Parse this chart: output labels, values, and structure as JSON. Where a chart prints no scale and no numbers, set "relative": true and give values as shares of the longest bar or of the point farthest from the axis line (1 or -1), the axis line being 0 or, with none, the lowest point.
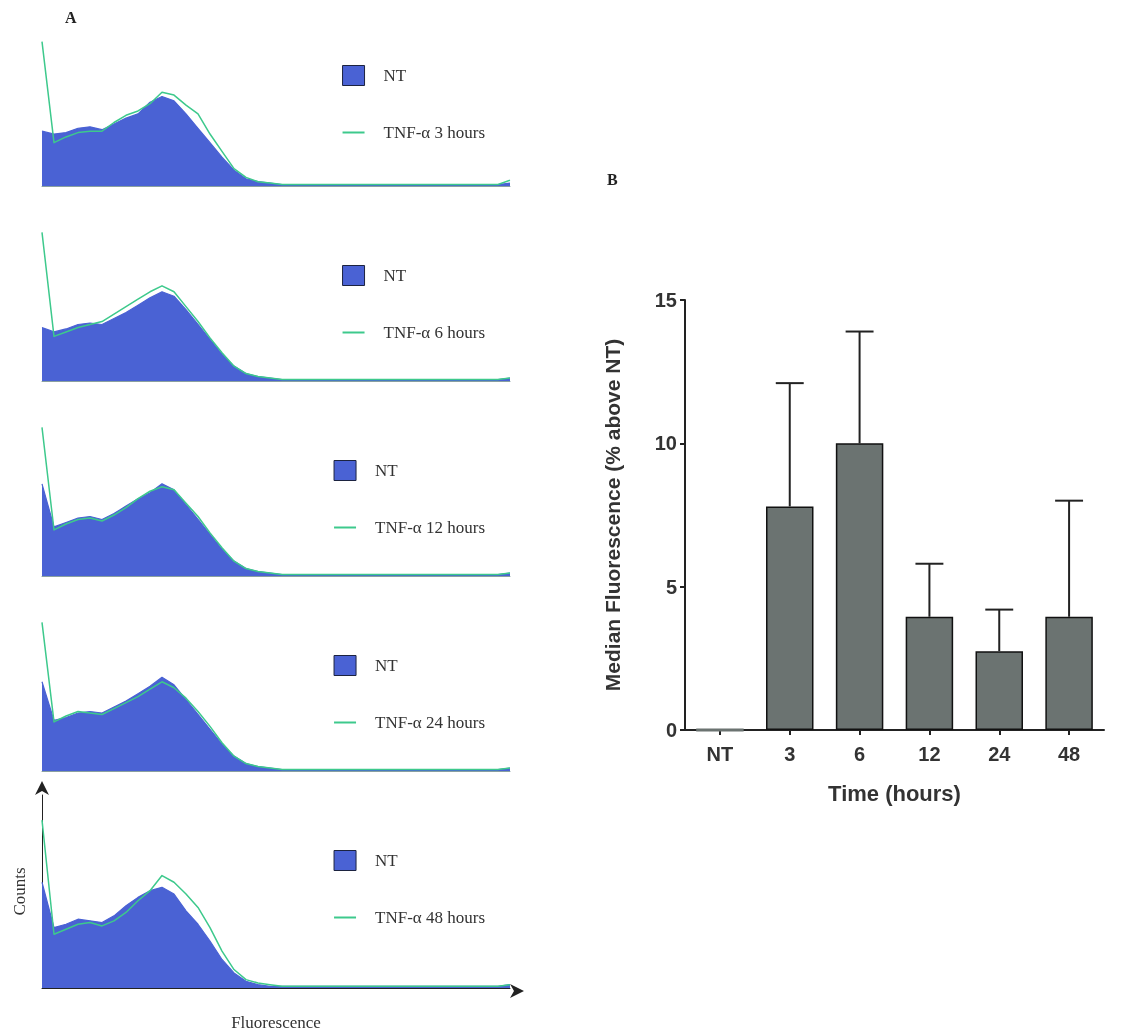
{
  "chart_data": [
    {
      "type": "area",
      "title": "A",
      "relative": true,
      "legend": "top right",
      "marker": "none",
      "categories": [
        null,
        null,
        null,
        null,
        null,
        null,
        null,
        null,
        null,
        null,
        null,
        null,
        null,
        null,
        null,
        null,
        null,
        null,
        null,
        null,
        null,
        null,
        null,
        null,
        null,
        null,
        null,
        null,
        null,
        null,
        null,
        null,
        null,
        null,
        null,
        null,
        null,
        null,
        null,
        null
      ],
      "series": [
        {
          "name": "NT",
          "color": "#4a62d4",
          "values": [
            0.38,
            0.36,
            0.37,
            0.4,
            0.41,
            0.39,
            0.43,
            0.47,
            0.5,
            0.58,
            0.62,
            0.59,
            0.5,
            0.4,
            0.3,
            0.2,
            0.11,
            0.05,
            0.03,
            0.02,
            0.01,
            0.01,
            0.01,
            0.01,
            0.01,
            0.01,
            0.01,
            0.01,
            0.01,
            0.01,
            0.01,
            0.01,
            0.01,
            0.01,
            0.01,
            0.01,
            0.01,
            0.01,
            0.01,
            0.02
          ]
        },
        {
          "name": "TNF-α 3 hours",
          "type": "line",
          "color": "#3dc98c",
          "values": [
            1,
            0.3,
            0.34,
            0.37,
            0.38,
            0.38,
            0.44,
            0.49,
            0.52,
            0.57,
            0.65,
            0.63,
            0.56,
            0.5,
            0.36,
            0.24,
            0.12,
            0.06,
            0.03,
            0.02,
            0.01,
            0.01,
            0.01,
            0.01,
            0.01,
            0.01,
            0.01,
            0.01,
            0.01,
            0.01,
            0.01,
            0.01,
            0.01,
            0.01,
            0.01,
            0.01,
            0.01,
            0.01,
            0.01,
            0.04
          ]
        }
      ]
    },
    {
      "type": "area",
      "relative": true,
      "legend": "top right",
      "marker": "none",
      "categories": [
        null,
        null,
        null,
        null,
        null,
        null,
        null,
        null,
        null,
        null,
        null,
        null,
        null,
        null,
        null,
        null,
        null,
        null,
        null,
        null,
        null,
        null,
        null,
        null,
        null,
        null,
        null,
        null,
        null,
        null,
        null,
        null,
        null,
        null,
        null,
        null,
        null,
        null,
        null,
        null
      ],
      "series": [
        {
          "name": "NT",
          "color": "#4a62d4",
          "values": [
            0.36,
            0.33,
            0.35,
            0.38,
            0.39,
            0.38,
            0.42,
            0.46,
            0.51,
            0.56,
            0.6,
            0.57,
            0.48,
            0.38,
            0.28,
            0.18,
            0.1,
            0.05,
            0.03,
            0.02,
            0.01,
            0.01,
            0.01,
            0.01,
            0.01,
            0.01,
            0.01,
            0.01,
            0.01,
            0.01,
            0.01,
            0.01,
            0.01,
            0.01,
            0.01,
            0.01,
            0.01,
            0.01,
            0.01,
            0.02
          ]
        },
        {
          "name": "TNF-α 6 hours",
          "type": "line",
          "color": "#3dc98c",
          "values": [
            1,
            0.3,
            0.33,
            0.36,
            0.38,
            0.4,
            0.45,
            0.5,
            0.55,
            0.6,
            0.64,
            0.6,
            0.5,
            0.4,
            0.29,
            0.19,
            0.1,
            0.05,
            0.03,
            0.02,
            0.01,
            0.01,
            0.01,
            0.01,
            0.01,
            0.01,
            0.01,
            0.01,
            0.01,
            0.01,
            0.01,
            0.01,
            0.01,
            0.01,
            0.01,
            0.01,
            0.01,
            0.01,
            0.01,
            0.02
          ]
        }
      ]
    },
    {
      "type": "area",
      "relative": true,
      "legend": "top right",
      "marker": "none",
      "categories": [
        null,
        null,
        null,
        null,
        null,
        null,
        null,
        null,
        null,
        null,
        null,
        null,
        null,
        null,
        null,
        null,
        null,
        null,
        null,
        null,
        null,
        null,
        null,
        null,
        null,
        null,
        null,
        null,
        null,
        null,
        null,
        null,
        null,
        null,
        null,
        null,
        null,
        null,
        null,
        null
      ],
      "series": [
        {
          "name": "NT",
          "color": "#4a62d4",
          "values": [
            0.62,
            0.33,
            0.36,
            0.39,
            0.4,
            0.38,
            0.42,
            0.47,
            0.52,
            0.56,
            0.62,
            0.58,
            0.48,
            0.38,
            0.28,
            0.18,
            0.1,
            0.05,
            0.03,
            0.02,
            0.01,
            0.01,
            0.01,
            0.01,
            0.01,
            0.01,
            0.01,
            0.01,
            0.01,
            0.01,
            0.01,
            0.01,
            0.01,
            0.01,
            0.01,
            0.01,
            0.01,
            0.01,
            0.01,
            0.02
          ]
        },
        {
          "name": "TNF-α 12 hours",
          "type": "line",
          "color": "#3dc98c",
          "values": [
            1,
            0.31,
            0.35,
            0.38,
            0.39,
            0.37,
            0.41,
            0.46,
            0.52,
            0.57,
            0.6,
            0.58,
            0.49,
            0.4,
            0.29,
            0.19,
            0.1,
            0.05,
            0.03,
            0.02,
            0.01,
            0.01,
            0.01,
            0.01,
            0.01,
            0.01,
            0.01,
            0.01,
            0.01,
            0.01,
            0.01,
            0.01,
            0.01,
            0.01,
            0.01,
            0.01,
            0.01,
            0.01,
            0.01,
            0.02
          ]
        }
      ]
    },
    {
      "type": "area",
      "relative": true,
      "legend": "top right",
      "marker": "none",
      "categories": [
        null,
        null,
        null,
        null,
        null,
        null,
        null,
        null,
        null,
        null,
        null,
        null,
        null,
        null,
        null,
        null,
        null,
        null,
        null,
        null,
        null,
        null,
        null,
        null,
        null,
        null,
        null,
        null,
        null,
        null,
        null,
        null,
        null,
        null,
        null,
        null,
        null,
        null,
        null,
        null
      ],
      "series": [
        {
          "name": "NT",
          "color": "#4a62d4",
          "values": [
            0.6,
            0.34,
            0.36,
            0.39,
            0.4,
            0.39,
            0.43,
            0.47,
            0.52,
            0.57,
            0.63,
            0.58,
            0.48,
            0.38,
            0.28,
            0.18,
            0.1,
            0.05,
            0.03,
            0.02,
            0.01,
            0.01,
            0.01,
            0.01,
            0.01,
            0.01,
            0.01,
            0.01,
            0.01,
            0.01,
            0.01,
            0.01,
            0.01,
            0.01,
            0.01,
            0.01,
            0.01,
            0.01,
            0.01,
            0.02
          ]
        },
        {
          "name": "TNF-α 24 hours",
          "type": "line",
          "color": "#3dc98c",
          "values": [
            1,
            0.33,
            0.37,
            0.4,
            0.39,
            0.38,
            0.42,
            0.46,
            0.5,
            0.55,
            0.6,
            0.56,
            0.49,
            0.4,
            0.3,
            0.19,
            0.1,
            0.05,
            0.03,
            0.02,
            0.01,
            0.01,
            0.01,
            0.01,
            0.01,
            0.01,
            0.01,
            0.01,
            0.01,
            0.01,
            0.01,
            0.01,
            0.01,
            0.01,
            0.01,
            0.01,
            0.01,
            0.01,
            0.01,
            0.02
          ]
        }
      ]
    },
    {
      "type": "area",
      "relative": true,
      "legend": "top right",
      "marker": "none",
      "xlabel": "Fluorescence",
      "ylabel": "Counts",
      "categories": [
        null,
        null,
        null,
        null,
        null,
        null,
        null,
        null,
        null,
        null,
        null,
        null,
        null,
        null,
        null,
        null,
        null,
        null,
        null,
        null,
        null,
        null,
        null,
        null,
        null,
        null,
        null,
        null,
        null,
        null,
        null,
        null,
        null,
        null,
        null,
        null,
        null,
        null,
        null,
        null
      ],
      "series": [
        {
          "name": "NT",
          "color": "#4a62d4",
          "values": [
            0.63,
            0.36,
            0.38,
            0.41,
            0.4,
            0.39,
            0.43,
            0.49,
            0.54,
            0.58,
            0.6,
            0.56,
            0.46,
            0.38,
            0.28,
            0.17,
            0.09,
            0.04,
            0.02,
            0.01,
            0.01,
            0.01,
            0.01,
            0.01,
            0.01,
            0.01,
            0.01,
            0.01,
            0.01,
            0.01,
            0.01,
            0.01,
            0.01,
            0.01,
            0.01,
            0.01,
            0.01,
            0.01,
            0.01,
            0.02
          ]
        },
        {
          "name": "TNF-α 48 hours",
          "type": "line",
          "color": "#3dc98c",
          "values": [
            1,
            0.32,
            0.35,
            0.38,
            0.39,
            0.37,
            0.4,
            0.45,
            0.52,
            0.58,
            0.67,
            0.63,
            0.56,
            0.48,
            0.36,
            0.22,
            0.11,
            0.05,
            0.03,
            0.02,
            0.01,
            0.01,
            0.01,
            0.01,
            0.01,
            0.01,
            0.01,
            0.01,
            0.01,
            0.01,
            0.01,
            0.01,
            0.01,
            0.01,
            0.01,
            0.01,
            0.01,
            0.01,
            0.01,
            0.02
          ]
        }
      ]
    },
    {
      "type": "bar",
      "title": "B",
      "xlabel": "Time (hours)",
      "ylabel": "Median Fluorescence (% above NT)",
      "categories": [
        "NT",
        "3",
        "6",
        "12",
        "24",
        "48"
      ],
      "values": [
        0,
        7.8,
        10,
        3.95,
        2.75,
        3.95
      ],
      "errors": [
        null,
        [
          7.8,
          12.1
        ],
        [
          10,
          13.9
        ],
        [
          3.95,
          5.8
        ],
        [
          2.75,
          4.2
        ],
        [
          3.95,
          8.0
        ]
      ],
      "color": "#6b7371",
      "ylim": [
        0,
        15
      ],
      "yticks": [
        0,
        5,
        10,
        15
      ]
    }
  ]
}
